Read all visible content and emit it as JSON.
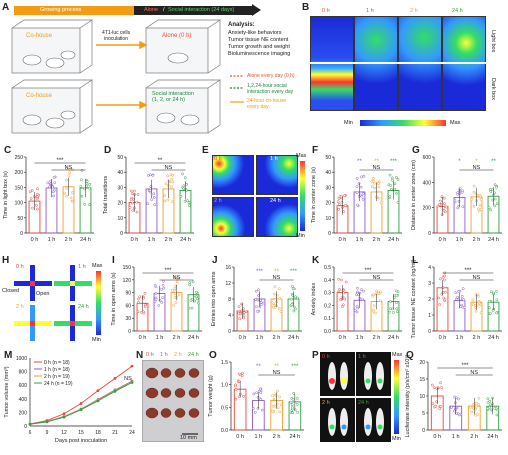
{
  "panelA": {
    "label": "A",
    "timeline": {
      "growing": "Growing process",
      "alone": "Alone",
      "slash": "/",
      "social": "Social interaction (24 days)"
    },
    "cohouse1": "Co-house",
    "cohouse2": "Co-house",
    "inoculation": "4T1-luc cells\ninoculation",
    "alone_box": "Alone (0 h)",
    "social_box": "Social interaction\n(1, 2, or 24 h)",
    "analysis_title": "Analysis:",
    "analysis_items": [
      "Anxiety-like behaviors",
      "Tumor tissue NE content",
      "Tumor growth and weight",
      "Bioluminescence imaging"
    ],
    "legend": [
      {
        "text": "Alone every day (0 h)",
        "color": "#e8532c"
      },
      {
        "text": "1,2,24-hour social\ninteraction every day",
        "color": "#1f8a3a"
      },
      {
        "text": "24-hour co-house\nevery day",
        "color": "#f39c12"
      }
    ]
  },
  "panelB": {
    "label": "B",
    "cols": [
      "0 h",
      "1 h",
      "2 h",
      "24 h"
    ],
    "rows": [
      "Light box",
      "Dark box"
    ],
    "scale_min": "Min",
    "scale_max": "Max"
  },
  "groups": [
    "0 h",
    "1 h",
    "2 h",
    "24 h"
  ],
  "colors": {
    "g0": "#e8463c",
    "g1": "#8a5cc8",
    "g2": "#f0a030",
    "g24": "#2ea043"
  },
  "panelC": {
    "label": "C",
    "ylabel": "Time in light box (s)",
    "sig1": "***",
    "sig2": "NS",
    "yticks": [
      "0",
      "50",
      "100",
      "150",
      "200",
      "250"
    ]
  },
  "panelD": {
    "label": "D",
    "ylabel": "Total transitions",
    "sig1": "**",
    "sig2": "NS",
    "yticks": [
      "0",
      "10",
      "20",
      "30",
      "40",
      "50"
    ]
  },
  "panelE": {
    "label": "E",
    "cells": [
      "0 h",
      "1 h",
      "2 h",
      "24 h"
    ],
    "scale_max": "Max",
    "scale_min": "Min"
  },
  "panelF": {
    "label": "F",
    "ylabel": "Time in center zone (s)",
    "sig_top": [
      "**",
      "**",
      "***"
    ],
    "sig2": "NS",
    "yticks": [
      "0",
      "10",
      "20",
      "30",
      "40",
      "50"
    ]
  },
  "panelG": {
    "label": "G",
    "ylabel": "Distance in center zone (cm)",
    "sig_top": [
      "*",
      "*",
      "**"
    ],
    "sig2": "NS",
    "yticks": [
      "0",
      "200",
      "400",
      "600"
    ]
  },
  "panelH": {
    "label": "H",
    "cells": [
      "0 h",
      "1 h",
      "2 h",
      "24 h"
    ],
    "closed": "Closed",
    "open": "Open",
    "scale_max": "Max",
    "scale_min": "Min"
  },
  "panelI": {
    "label": "I",
    "ylabel": "Time in open arms (s)",
    "sig1": "***",
    "sig2": "NS",
    "yticks": [
      "0",
      "30",
      "60",
      "90",
      "120",
      "150"
    ]
  },
  "panelJ": {
    "label": "J",
    "ylabel": "Entries into open arms",
    "sig_top": [
      "***",
      "**",
      "***"
    ],
    "sig2": "NS",
    "yticks": [
      "0",
      "4",
      "8",
      "12",
      "16"
    ]
  },
  "panelK": {
    "label": "K",
    "ylabel": "Anxiety index",
    "sig1": "***",
    "sig2": "NS",
    "yticks": [
      "0.0",
      "0.1",
      "0.2",
      "0.3",
      "0.4",
      "0.5"
    ]
  },
  "panelL": {
    "label": "L",
    "ylabel": "Tumor tissue NE content (ng/ml)",
    "sig1": "***",
    "sig2": "NS",
    "yticks": [
      "0",
      "1",
      "2",
      "3",
      "4"
    ]
  },
  "panelM": {
    "label": "M",
    "ylabel": "Tumor volume (mm³)",
    "xlabel": "Days post inoculation",
    "legend": [
      "0 h (n = 18)",
      "1 h (n = 18)",
      "2 h (n = 19)",
      "24 h (n = 19)"
    ],
    "sig2": "NS",
    "xticks": [
      "6",
      "9",
      "12",
      "15",
      "18",
      "21",
      "24"
    ],
    "yticks": [
      "0",
      "200",
      "400",
      "600",
      "800",
      "1000"
    ]
  },
  "panelN": {
    "label": "N",
    "cols": [
      "0 h",
      "1 h",
      "2 h",
      "24 h"
    ],
    "scale": "10 mm"
  },
  "panelO": {
    "label": "O",
    "ylabel": "Tumor weight (g)",
    "sig_top": [
      "**",
      "**",
      "***"
    ],
    "sig2": "NS",
    "yticks": [
      "0.0",
      "0.5",
      "1.0",
      "1.5"
    ]
  },
  "panelP": {
    "label": "P",
    "cells": [
      "0 h",
      "1 h",
      "2 h",
      "24 h"
    ],
    "scale_max": "Max",
    "scale_min": "Min"
  },
  "panelQ": {
    "label": "Q",
    "ylabel": "Luciferase intensity (p/s/cm² x10⁸)",
    "sig1": "***",
    "sig2": "NS",
    "yticks": [
      "0",
      "5",
      "10",
      "15",
      "20"
    ]
  },
  "chart_data": [
    {
      "type": "bar",
      "id": "C",
      "categories": [
        "0 h",
        "1 h",
        "2 h",
        "24 h"
      ],
      "values": [
        105,
        148,
        152,
        148
      ],
      "ylabel": "Time in light box (s)",
      "ylim": [
        0,
        250
      ]
    },
    {
      "type": "bar",
      "id": "D",
      "categories": [
        "0 h",
        "1 h",
        "2 h",
        "24 h"
      ],
      "values": [
        20,
        29,
        29,
        28
      ],
      "ylabel": "Total transitions",
      "ylim": [
        0,
        50
      ]
    },
    {
      "type": "bar",
      "id": "F",
      "categories": [
        "0 h",
        "1 h",
        "2 h",
        "24 h"
      ],
      "values": [
        18,
        27,
        27,
        28
      ],
      "ylabel": "Time in center zone (s)",
      "ylim": [
        0,
        50
      ]
    },
    {
      "type": "bar",
      "id": "G",
      "categories": [
        "0 h",
        "1 h",
        "2 h",
        "24 h"
      ],
      "values": [
        210,
        280,
        285,
        290
      ],
      "ylabel": "Distance in center zone (cm)",
      "ylim": [
        0,
        600
      ]
    },
    {
      "type": "bar",
      "id": "I",
      "categories": [
        "0 h",
        "1 h",
        "2 h",
        "24 h"
      ],
      "values": [
        65,
        88,
        90,
        85
      ],
      "ylabel": "Time in open arms (s)",
      "ylim": [
        0,
        150
      ]
    },
    {
      "type": "bar",
      "id": "J",
      "categories": [
        "0 h",
        "1 h",
        "2 h",
        "24 h"
      ],
      "values": [
        5,
        8,
        8,
        8
      ],
      "ylabel": "Entries into open arms",
      "ylim": [
        0,
        16
      ]
    },
    {
      "type": "bar",
      "id": "K",
      "categories": [
        "0 h",
        "1 h",
        "2 h",
        "24 h"
      ],
      "values": [
        0.3,
        0.24,
        0.23,
        0.23
      ],
      "ylabel": "Anxiety index",
      "ylim": [
        0,
        0.5
      ]
    },
    {
      "type": "bar",
      "id": "L",
      "categories": [
        "0 h",
        "1 h",
        "2 h",
        "24 h"
      ],
      "values": [
        2.7,
        1.9,
        1.8,
        1.8
      ],
      "ylabel": "Tumor tissue NE content (ng/ml)",
      "ylim": [
        0,
        4
      ]
    },
    {
      "type": "line",
      "id": "M",
      "x": [
        6,
        9,
        12,
        15,
        18,
        21,
        24
      ],
      "series": [
        {
          "name": "0 h (n = 18)",
          "values": [
            30,
            80,
            180,
            330,
            520,
            700,
            880
          ]
        },
        {
          "name": "1 h (n = 18)",
          "values": [
            28,
            65,
            140,
            250,
            390,
            530,
            660
          ]
        },
        {
          "name": "2 h (n = 19)",
          "values": [
            27,
            62,
            135,
            245,
            380,
            520,
            650
          ]
        },
        {
          "name": "24 h (n = 19)",
          "values": [
            26,
            60,
            130,
            240,
            370,
            510,
            640
          ]
        }
      ],
      "xlabel": "Days post inoculation",
      "ylabel": "Tumor volume (mm³)",
      "ylim": [
        0,
        1000
      ]
    },
    {
      "type": "bar",
      "id": "O",
      "categories": [
        "0 h",
        "1 h",
        "2 h",
        "24 h"
      ],
      "values": [
        0.9,
        0.65,
        0.65,
        0.62
      ],
      "ylabel": "Tumor weight (g)",
      "ylim": [
        0,
        1.5
      ]
    },
    {
      "type": "bar",
      "id": "Q",
      "categories": [
        "0 h",
        "1 h",
        "2 h",
        "24 h"
      ],
      "values": [
        10,
        7,
        7,
        7
      ],
      "ylabel": "Luciferase intensity",
      "ylim": [
        0,
        20
      ]
    }
  ]
}
